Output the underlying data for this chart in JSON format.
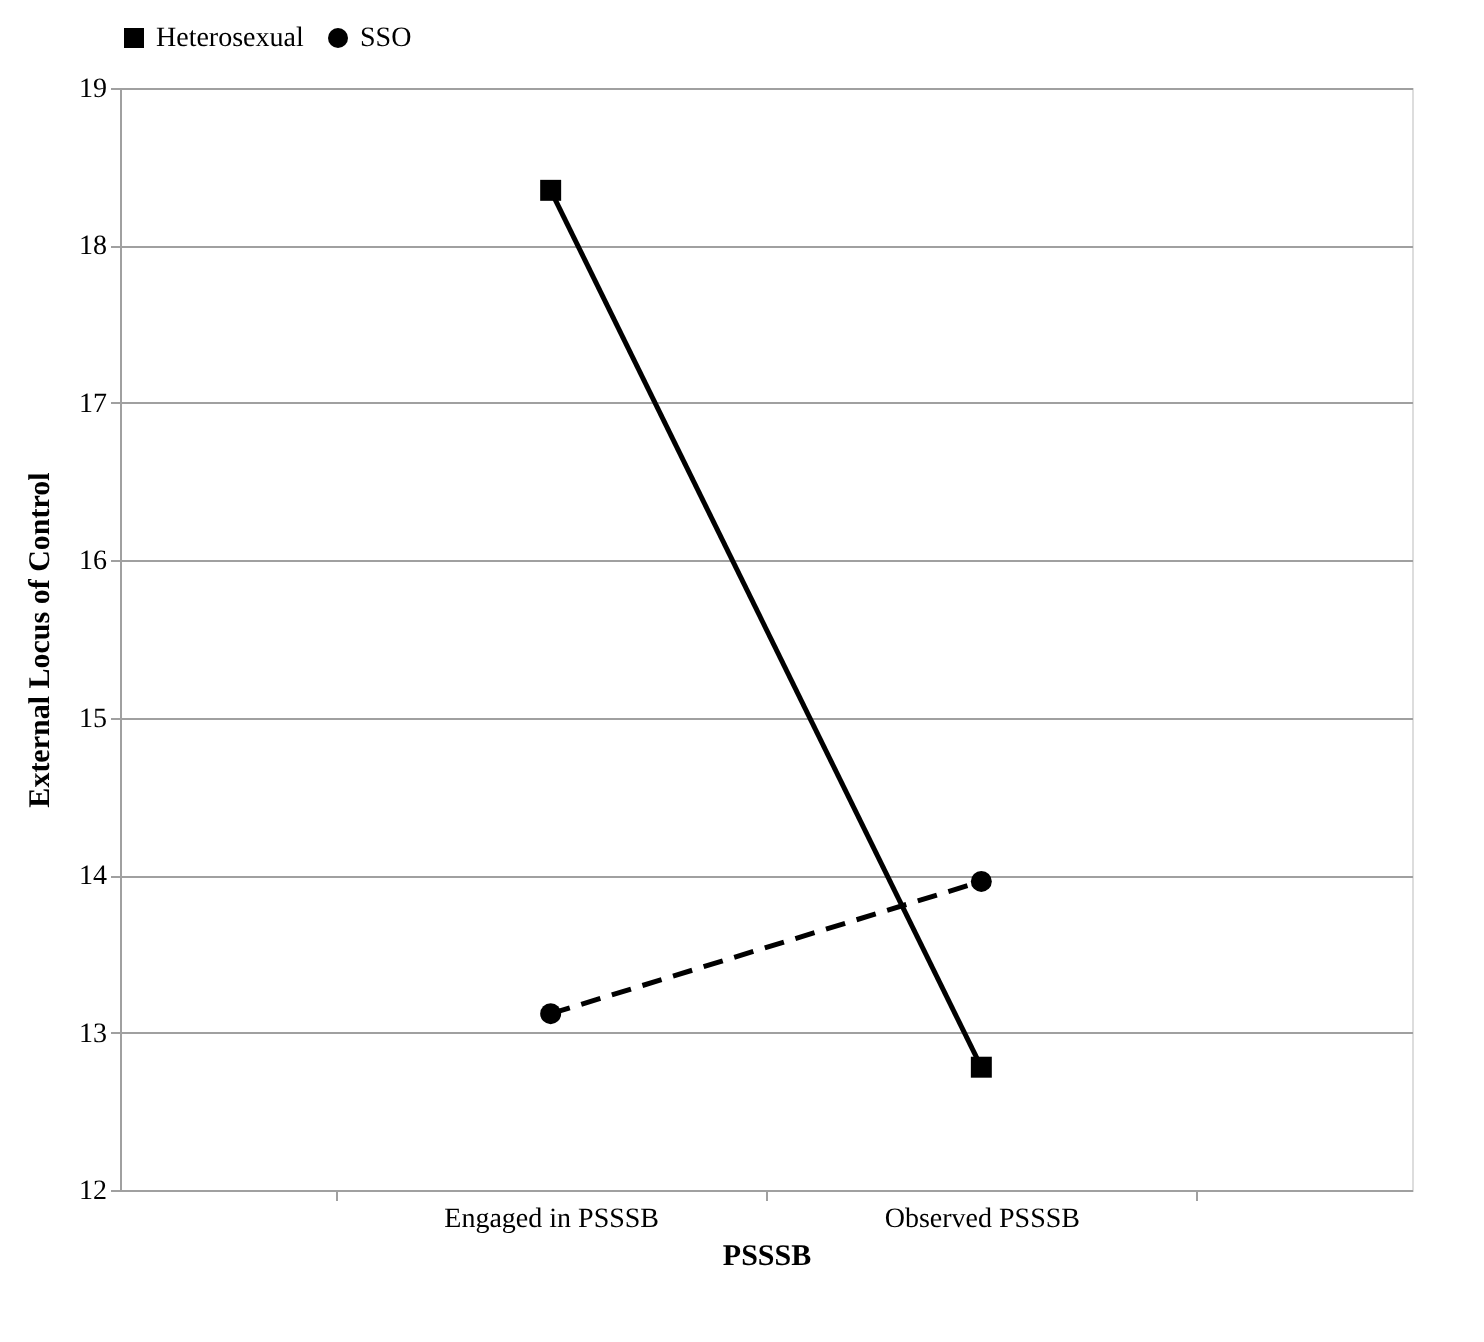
{
  "chart_data": {
    "type": "line",
    "xlabel": "PSSSB",
    "ylabel": "External Locus of Control",
    "categories": [
      "Engaged in PSSSB",
      "Observed PSSSB"
    ],
    "series": [
      {
        "name": "Heterosexual",
        "color": "#000000",
        "values": [
          18.35,
          12.78
        ],
        "marker": "square",
        "line_style": "solid"
      },
      {
        "name": "SSO",
        "color": "#000000",
        "values": [
          13.12,
          13.96
        ],
        "marker": "circle",
        "line_style": "dashed"
      }
    ],
    "ylim": [
      12,
      19
    ],
    "yticks": [
      12,
      13,
      14,
      15,
      16,
      17,
      18,
      19
    ],
    "grid": "y",
    "legend": "top"
  }
}
